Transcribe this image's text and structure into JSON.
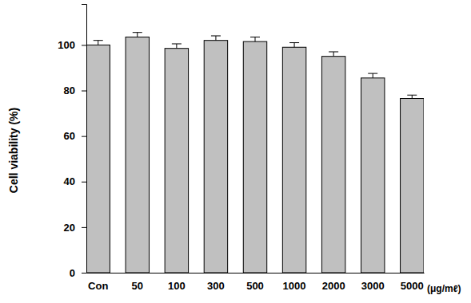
{
  "chart_data": {
    "type": "bar",
    "y_label": "Cell viability (%)",
    "x_label": "(μg/mℓ)",
    "categories": [
      "Con",
      "50",
      "100",
      "300",
      "500",
      "1000",
      "2000",
      "3000",
      "5000"
    ],
    "values": [
      100,
      103.5,
      98.5,
      102,
      101.5,
      99,
      95,
      85.5,
      76.5
    ],
    "errors": [
      2,
      2,
      2,
      2,
      2,
      2,
      2,
      2,
      1.5
    ],
    "color": "#c0c0c0",
    "ylim": [
      0,
      118
    ],
    "yticks": [
      0,
      20,
      40,
      60,
      80,
      100
    ],
    "grid": false
  }
}
